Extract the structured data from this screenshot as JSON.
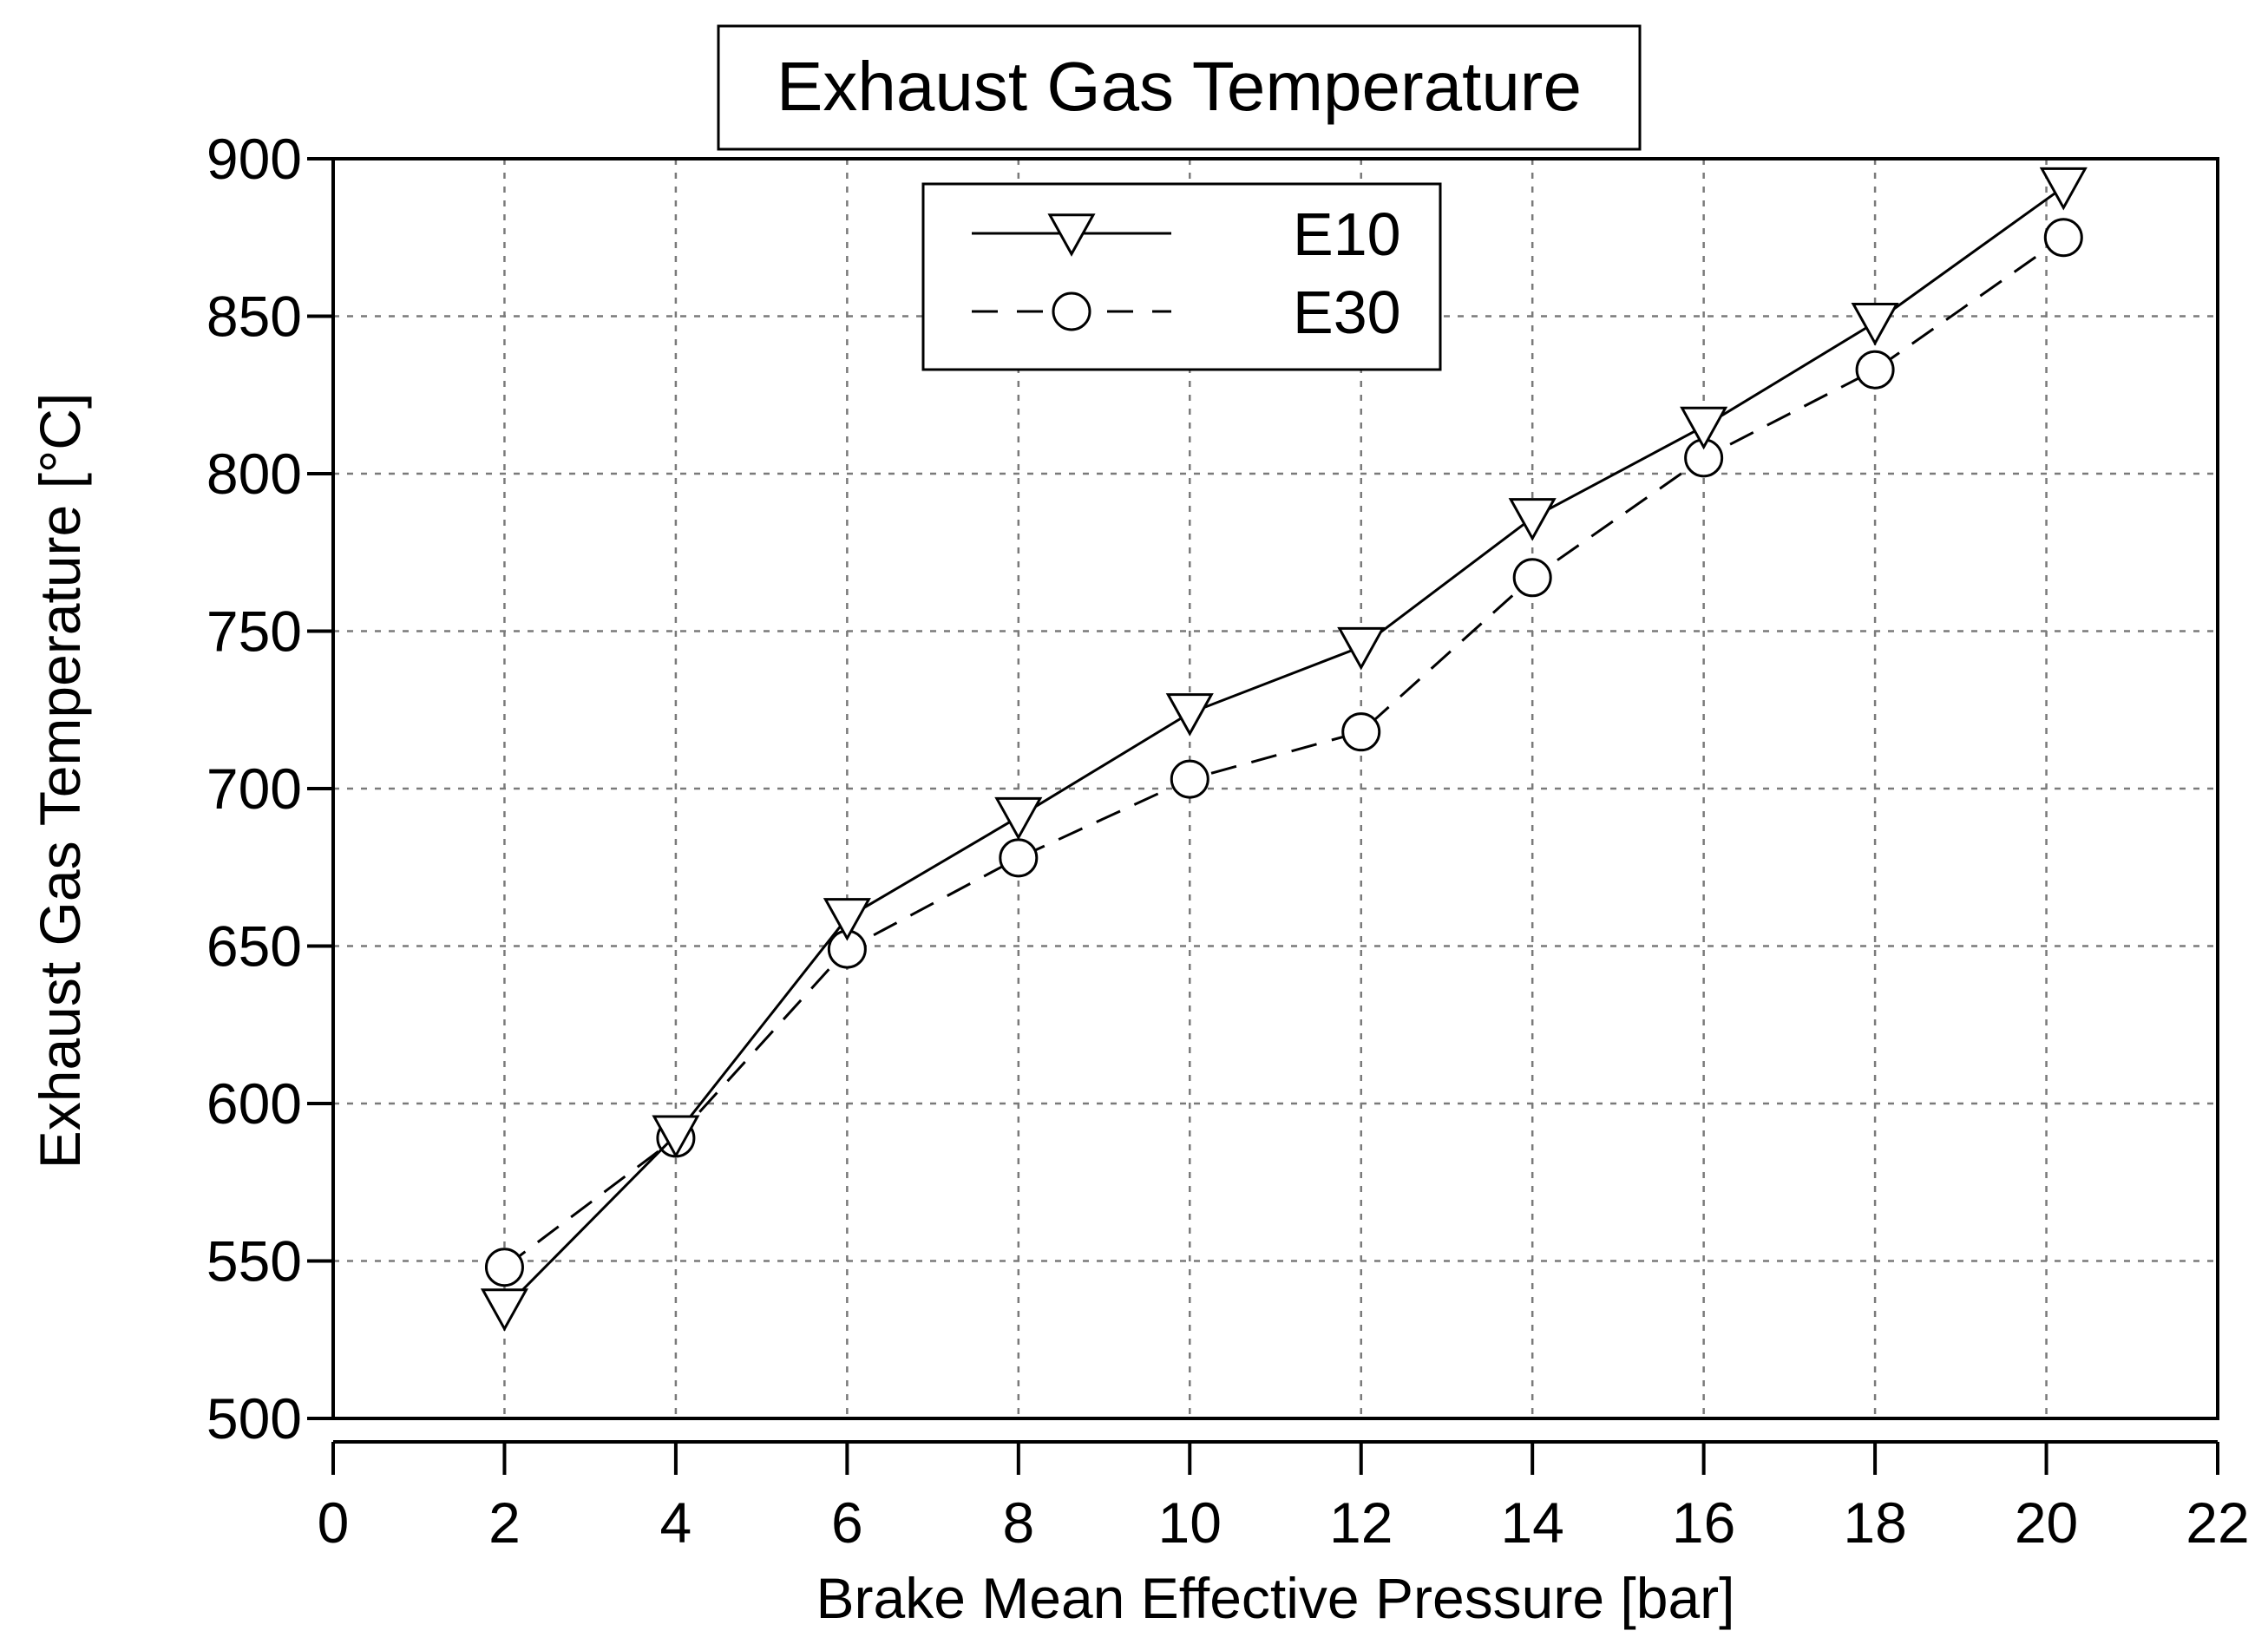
{
  "chart_data": {
    "type": "line",
    "title": "Exhaust Gas Temperature",
    "xlabel": "Brake Mean Effective Pressure [bar]",
    "ylabel": "Exhaust Gas Temperature [°C]",
    "xlim": [
      0,
      22
    ],
    "ylim": [
      500,
      900
    ],
    "xticks": [
      0,
      2,
      4,
      6,
      8,
      10,
      12,
      14,
      16,
      18,
      20,
      22
    ],
    "yticks": [
      500,
      550,
      600,
      650,
      700,
      750,
      800,
      850,
      900
    ],
    "grid": true,
    "legend_position": "top-center",
    "series": [
      {
        "name": "E10",
        "line_style": "solid",
        "marker": "triangle-down",
        "color": "#000000",
        "x": [
          2,
          4,
          6,
          8,
          10,
          12,
          14,
          16,
          18,
          20.2
        ],
        "y": [
          535,
          590,
          659,
          691,
          724,
          745,
          786,
          815,
          848,
          891
        ]
      },
      {
        "name": "E30",
        "line_style": "dashed",
        "marker": "circle",
        "color": "#000000",
        "x": [
          2,
          4,
          6,
          8,
          10,
          12,
          14,
          16,
          18,
          20.2
        ],
        "y": [
          548,
          589,
          649,
          678,
          703,
          718,
          767,
          805,
          833,
          875
        ]
      }
    ]
  }
}
